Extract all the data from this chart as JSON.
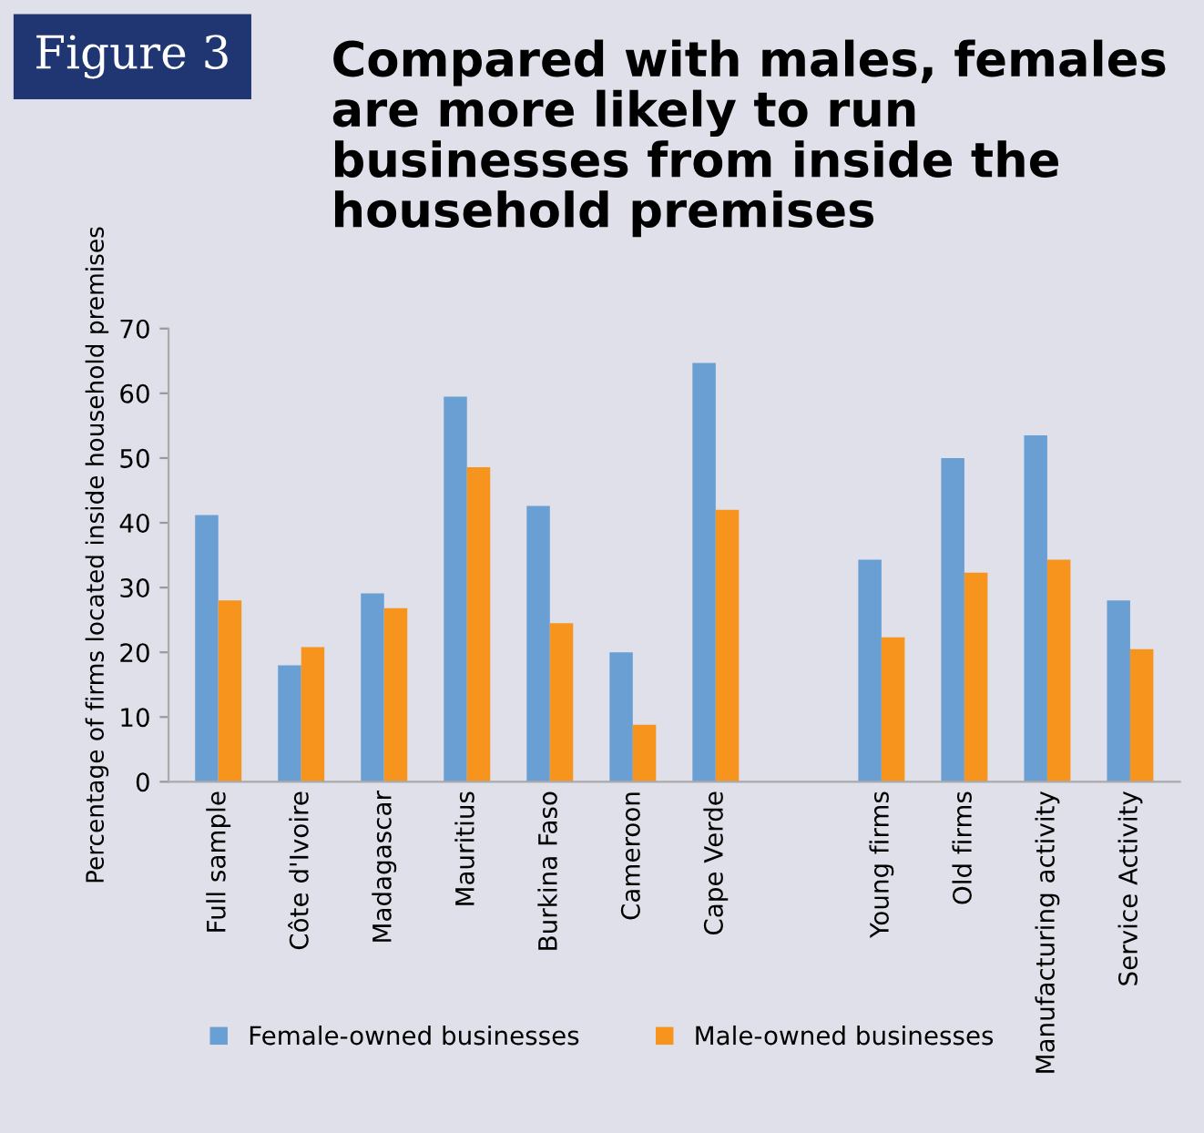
{
  "chart_data": {
    "type": "bar",
    "title": "Compared with males, females are more likely to run businesses from inside the household premises",
    "annotations": [
      "Figure 3"
    ],
    "ylabel": "Percentage of firms located inside household premises",
    "categories": [
      "Full sample",
      "Côte d'Ivoire",
      "Madagascar",
      "Mauritius",
      "Burkina Faso",
      "Cameroon",
      "Cape Verde",
      null,
      "Young firms",
      "Old firms",
      "Manufacturing activity",
      "Service Activity"
    ],
    "series": [
      {
        "name": "Female-owned businesses",
        "color": "#6a9fd4",
        "values": [
          41.2,
          18.0,
          29.1,
          59.5,
          42.6,
          20.0,
          64.7,
          null,
          34.3,
          50.0,
          53.5,
          28.0
        ]
      },
      {
        "name": "Male-owned businesses",
        "color": "#f7941e",
        "values": [
          28.0,
          20.8,
          26.8,
          48.6,
          24.5,
          8.8,
          42.0,
          null,
          22.3,
          32.3,
          34.3,
          20.5
        ]
      }
    ],
    "ylim": [
      0,
      70
    ],
    "yticks": [
      0,
      10,
      20,
      30,
      40,
      50,
      60,
      70
    ],
    "grid": false,
    "legend": "bottom"
  }
}
